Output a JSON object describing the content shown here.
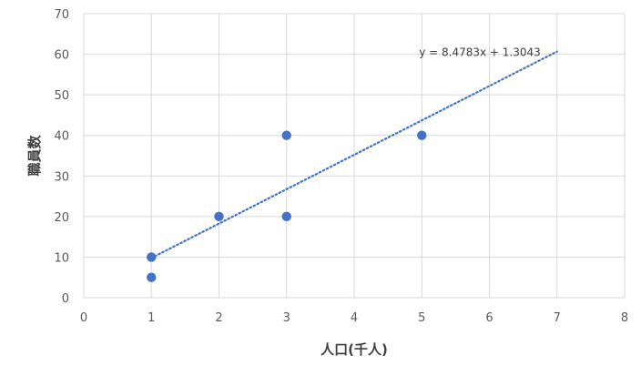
{
  "chart_data": {
    "type": "scatter",
    "title": "",
    "xlabel": "人口(千人)",
    "ylabel": "職員数",
    "xlim": [
      0,
      8
    ],
    "ylim": [
      0,
      70
    ],
    "x_ticks": [
      0,
      1,
      2,
      3,
      4,
      5,
      6,
      7,
      8
    ],
    "y_ticks": [
      0,
      10,
      20,
      30,
      40,
      50,
      60,
      70
    ],
    "grid": true,
    "legend": "none",
    "series": [
      {
        "points": [
          {
            "x": 1,
            "y": 10
          },
          {
            "x": 1,
            "y": 5
          },
          {
            "x": 2,
            "y": 20
          },
          {
            "x": 3,
            "y": 40
          },
          {
            "x": 3,
            "y": 20
          },
          {
            "x": 5,
            "y": 40
          }
        ],
        "color": "#4472c4"
      }
    ],
    "trendline": {
      "type": "linear",
      "slope": 8.4783,
      "intercept": 1.3043,
      "x_range": [
        1,
        7
      ],
      "label": "y = 8.4783x + 1.3043",
      "style": "dotted",
      "color": "#4472c4"
    }
  }
}
